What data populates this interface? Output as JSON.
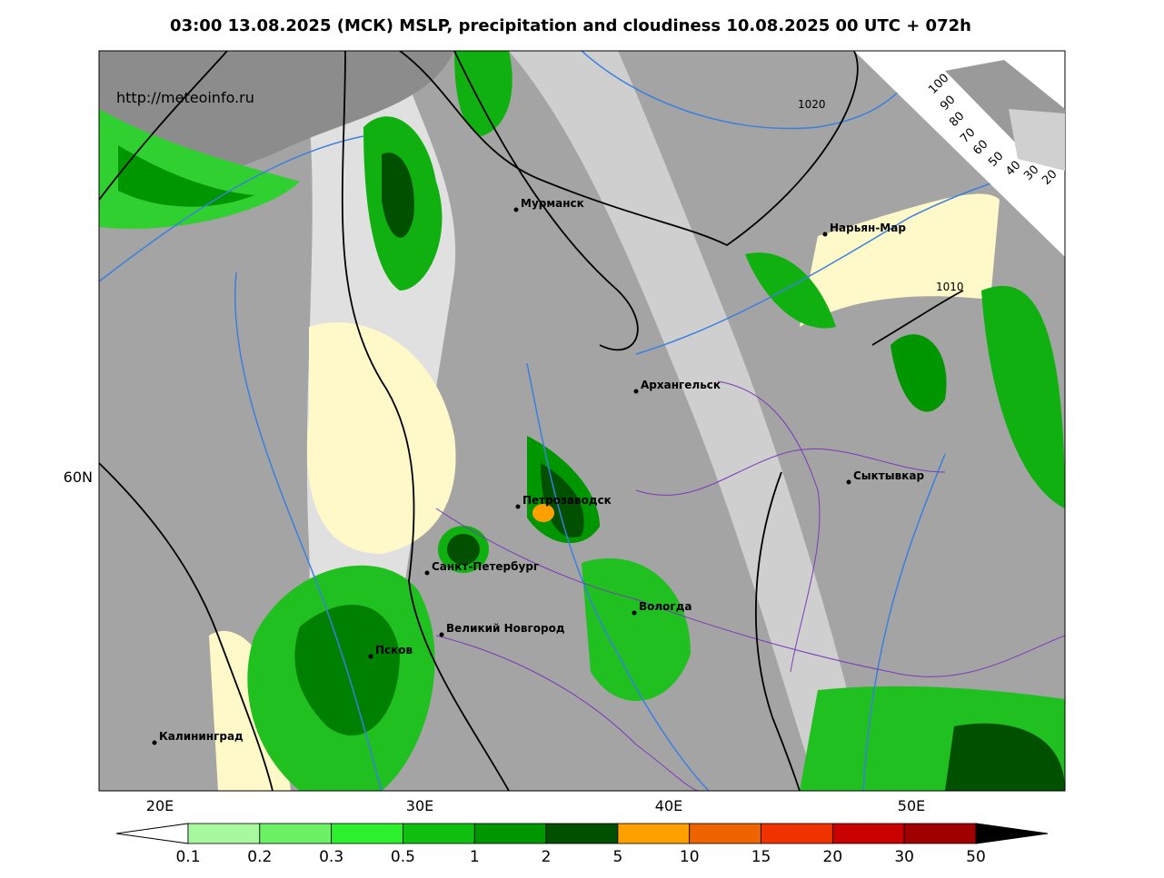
{
  "header": {
    "title": "03:00 13.08.2025 (МСК) MSLP, precipitation and cloudiness 10.08.2025 00 UTC + 072h"
  },
  "map": {
    "source": "http://meteoinfo.ru",
    "cities": [
      "Мурманск",
      "Нарьян-Мар",
      "Архангельск",
      "Сыктывкар",
      "Петрозаводск",
      "Санкт-Петербург",
      "Вологда",
      "Великий Новгород",
      "Псков",
      "Калининград"
    ],
    "isobars": [
      1020,
      1010
    ],
    "lon_labels": [
      "20E",
      "30E",
      "40E",
      "50E"
    ],
    "lat_labels": [
      "60N"
    ]
  },
  "cloudiness_scale": {
    "labels": [
      100,
      90,
      80,
      70,
      60,
      50,
      40,
      30,
      20
    ]
  },
  "precip_legend": {
    "bounds": [
      0.1,
      0.2,
      0.3,
      0.5,
      1,
      2,
      5,
      10,
      15,
      20,
      30,
      50
    ],
    "colors": [
      "#a8f8a0",
      "#6cf064",
      "#2cf02c",
      "#10c010",
      "#009600",
      "#005000",
      "#ffa000",
      "#f06400",
      "#f03200",
      "#c80000",
      "#a00000"
    ]
  }
}
